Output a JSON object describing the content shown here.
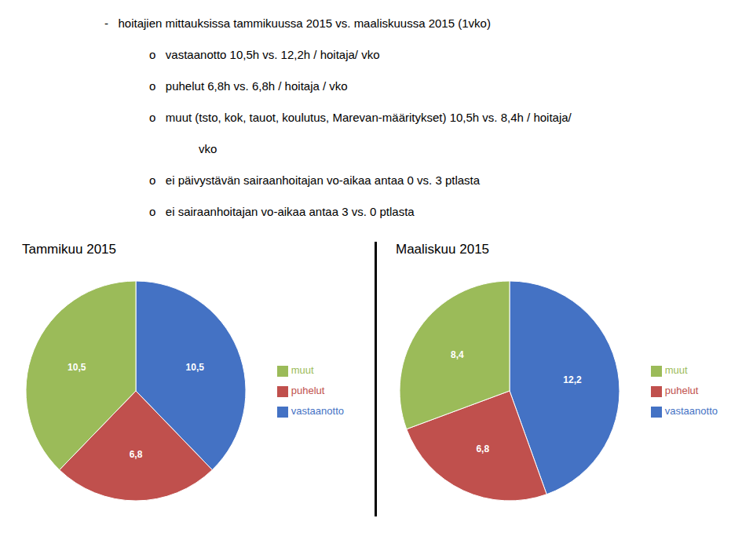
{
  "chart_data": [
    {
      "type": "pie",
      "title": "Tammikuu 2015",
      "categories": [
        "vastaanotto",
        "puhelut",
        "muut"
      ],
      "values": [
        10.5,
        6.8,
        10.5
      ],
      "value_labels": [
        "10,5",
        "6,8",
        "10,5"
      ],
      "colors": [
        "#4472C4",
        "#C0504D",
        "#9BBB59"
      ],
      "data_labels": true,
      "legend": "right",
      "annotations": [
        "-   hoitajien mittauksissa tammikuussa 2015 vs. maaliskuussa 2015 (1vko)",
        "o   vastaanotto 10,5h vs. 12,2h / hoitaja/ vko",
        "o   puhelut 6,8h vs. 6,8h / hoitaja / vko",
        "o   muut (tsto, kok, tauot, koulutus, Marevan-määritykset) 10,5h vs. 8,4h / hoitaja/",
        "vko",
        "o   ei päivystävän sairaanhoitajan vo-aikaa antaa 0 vs. 3 ptlasta",
        "o   ei sairaanhoitajan vo-aikaa antaa 3 vs. 0 ptlasta"
      ]
    },
    {
      "type": "pie",
      "title": "Maaliskuu 2015",
      "categories": [
        "vastaanotto",
        "puhelut",
        "muut"
      ],
      "values": [
        12.2,
        6.8,
        8.4
      ],
      "value_labels": [
        "12,2",
        "6,8",
        "8,4"
      ],
      "colors": [
        "#4472C4",
        "#C0504D",
        "#9BBB59"
      ],
      "data_labels": true,
      "legend": "right"
    }
  ]
}
